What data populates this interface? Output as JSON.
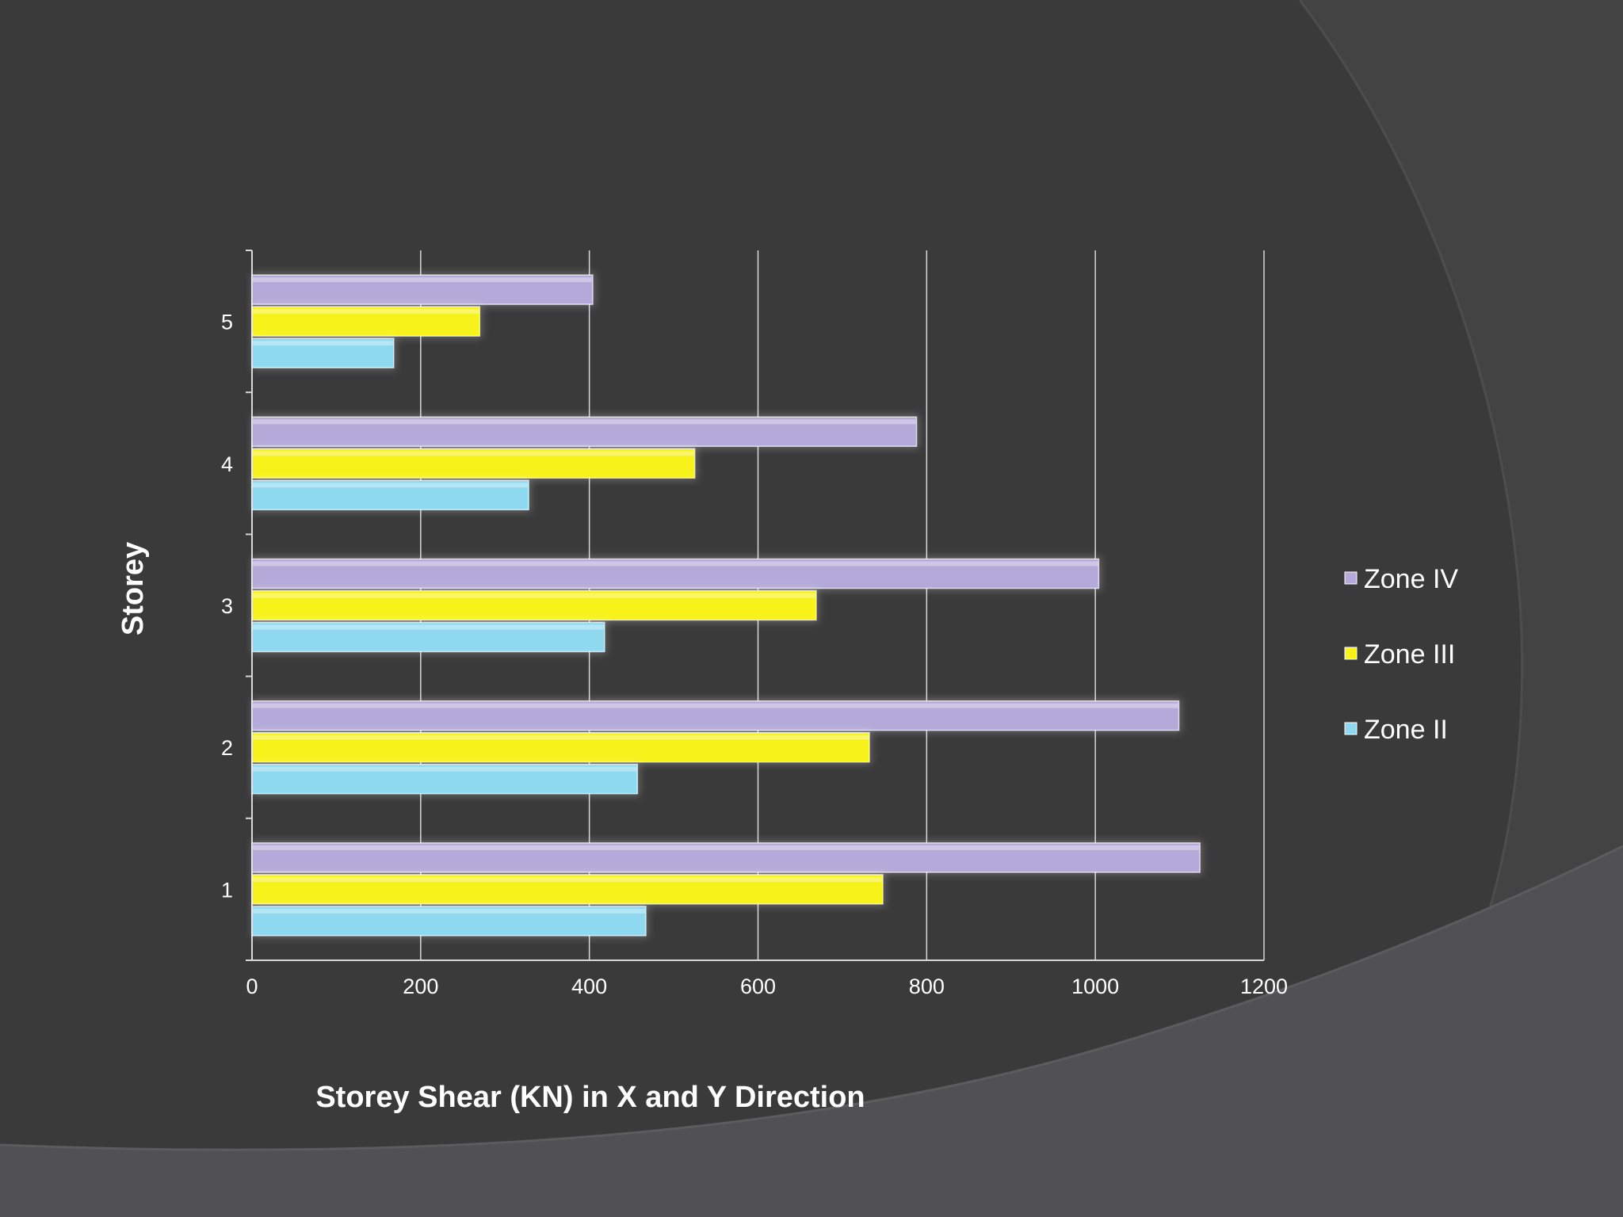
{
  "chart_data": {
    "type": "bar",
    "orientation": "horizontal",
    "categories": [
      "1",
      "2",
      "3",
      "4",
      "5"
    ],
    "series": [
      {
        "name": "Zone II",
        "color": "#8ed9ef",
        "values": [
          467,
          457,
          418,
          328,
          168
        ]
      },
      {
        "name": "Zone III",
        "color": "#f7f21a",
        "values": [
          748,
          732,
          669,
          525,
          270
        ]
      },
      {
        "name": "Zone IV",
        "color": "#b4aad9",
        "values": [
          1124,
          1099,
          1004,
          788,
          404
        ]
      }
    ],
    "title": "",
    "xlabel": "Storey Shear (KN) in X and Y Direction",
    "ylabel": "Storey",
    "xlim": [
      0,
      1200
    ],
    "xticks": [
      "0",
      "200",
      "400",
      "600",
      "800",
      "1000",
      "1200"
    ],
    "grid": "vertical",
    "legend_position": "right",
    "legend_order": [
      "Zone IV",
      "Zone III",
      "Zone II"
    ]
  }
}
